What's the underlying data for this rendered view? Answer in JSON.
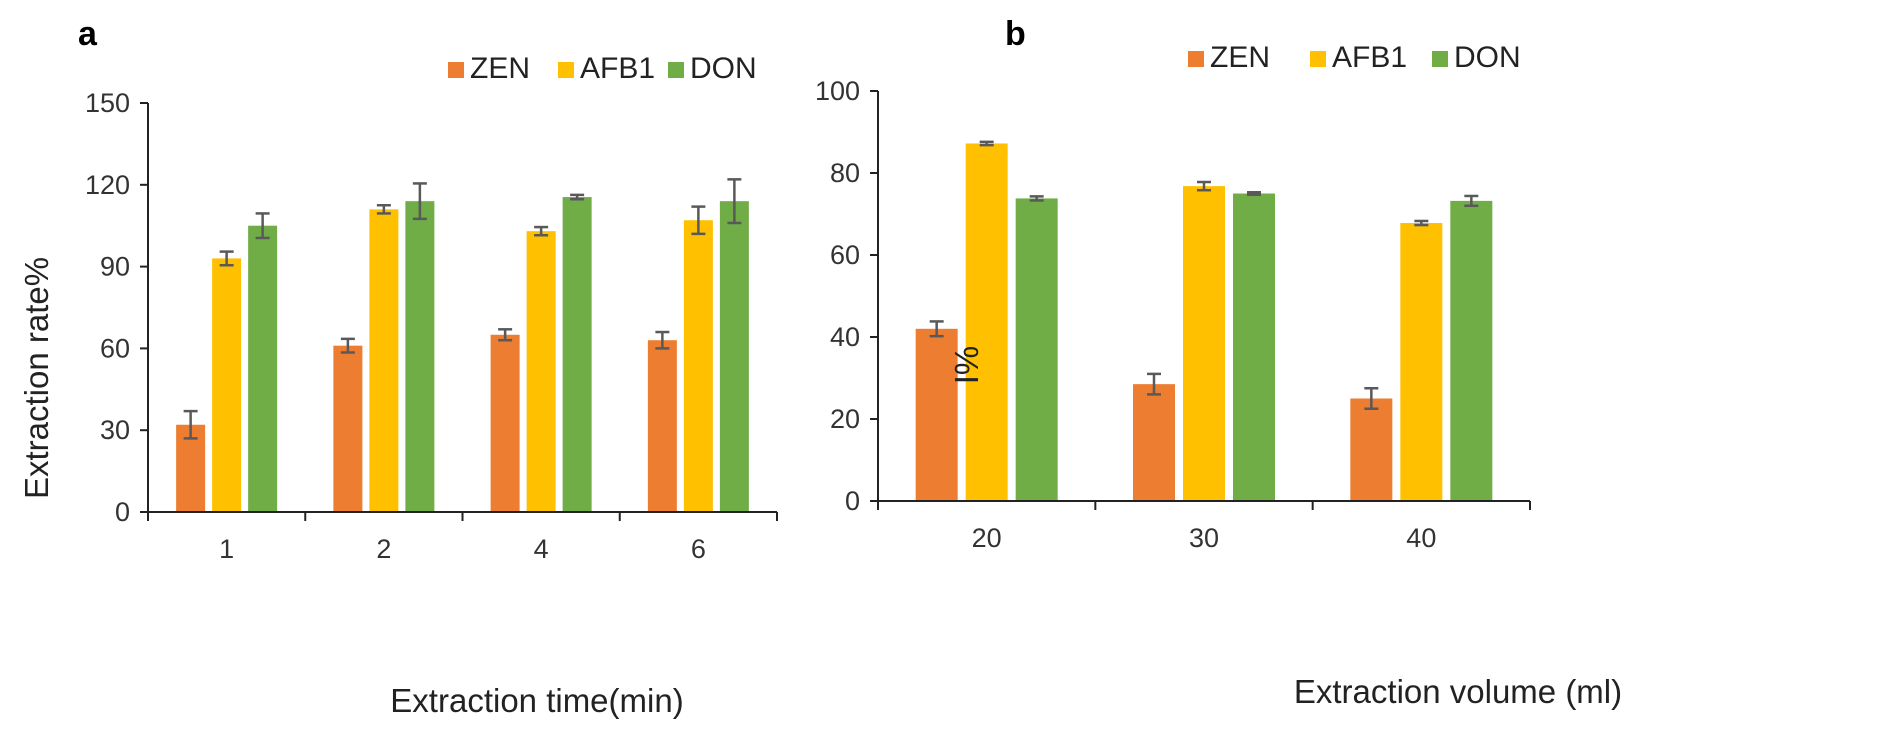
{
  "chart_data": [
    {
      "panel": "a",
      "type": "bar",
      "title": "",
      "xlabel": "Extraction time(min)",
      "ylabel": "Extraction rate%",
      "categories": [
        "1",
        "2",
        "4",
        "6"
      ],
      "ylim": [
        0,
        150
      ],
      "yticks": [
        "0",
        "30",
        "60",
        "90",
        "120",
        "150"
      ],
      "ytick_values": [
        0,
        30,
        60,
        90,
        120,
        150
      ],
      "grid": false,
      "legend": "top-right",
      "series": [
        {
          "name": "ZEN",
          "color": "#ED7D31",
          "values": [
            32,
            61,
            65,
            63
          ],
          "errors": [
            5,
            2.5,
            2,
            3
          ]
        },
        {
          "name": "AFB1",
          "color": "#FFC000",
          "values": [
            93,
            111,
            103,
            107
          ],
          "errors": [
            2.5,
            1.5,
            1.5,
            5
          ]
        },
        {
          "name": "DON",
          "color": "#70AD47",
          "values": [
            105,
            114,
            115.5,
            114
          ],
          "errors": [
            4.5,
            6.5,
            0.8,
            8
          ]
        }
      ]
    },
    {
      "panel": "b",
      "type": "bar",
      "title": "",
      "xlabel": "Extraction volume (ml)",
      "ylabel": "I%",
      "categories": [
        "20",
        "30",
        "40"
      ],
      "ylim": [
        0,
        100
      ],
      "yticks": [
        "0",
        "20",
        "40",
        "60",
        "80",
        "100"
      ],
      "ytick_values": [
        0,
        20,
        40,
        60,
        80,
        100
      ],
      "grid": false,
      "legend": "top-right",
      "series": [
        {
          "name": "ZEN",
          "color": "#ED7D31",
          "values": [
            42,
            28.5,
            25
          ],
          "errors": [
            1.8,
            2.5,
            2.5
          ]
        },
        {
          "name": "AFB1",
          "color": "#FFC000",
          "values": [
            87.2,
            76.8,
            67.8
          ],
          "errors": [
            0.4,
            1.0,
            0.5
          ]
        },
        {
          "name": "DON",
          "color": "#70AD47",
          "values": [
            73.8,
            75,
            73.2
          ],
          "errors": [
            0.5,
            0.3,
            1.2
          ]
        }
      ]
    }
  ]
}
